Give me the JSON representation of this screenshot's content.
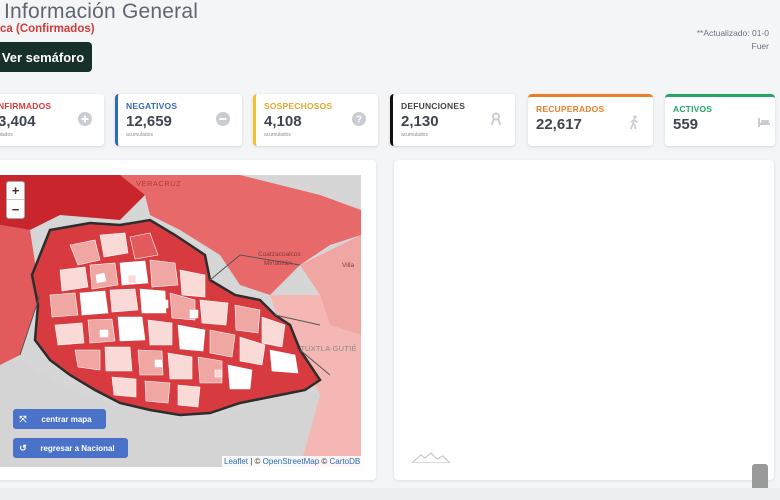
{
  "header": {
    "title": "Información General",
    "subtitle": "ca (Confirmados)",
    "semaforo_button": "Ver semáforo",
    "updated_line1": "**Actualizado: 01-0",
    "updated_line2": "Fuer"
  },
  "cards": [
    {
      "label": "NFIRMADOS",
      "value": "3,404",
      "note": "ulados",
      "icon": "plus-circle-icon"
    },
    {
      "label": "NEGATIVOS",
      "value": "12,659",
      "note": "acumulados",
      "icon": "minus-circle-icon"
    },
    {
      "label": "SOSPECHOSOS",
      "value": "4,108",
      "note": "acumulados",
      "icon": "question-circle-icon"
    },
    {
      "label": "DEFUNCIONES",
      "value": "2,130",
      "note": "acumulados",
      "icon": "ribbon-icon"
    },
    {
      "label": "RECUPERADOS",
      "value": "22,617",
      "icon": "walking-icon"
    },
    {
      "label": "ACTIVOS",
      "value": "559",
      "icon": "bed-icon"
    }
  ],
  "map": {
    "labels": {
      "veracruz": "VERACRUZ",
      "coatzacoalcos": "Coatzacoalcos",
      "minatitlan": "Minatitlán",
      "villa": "Villa",
      "tuxtla": "TUXTLA GUTIÉ"
    },
    "zoom_in": "+",
    "zoom_out": "−",
    "centrar_button": "centrar mapa",
    "regresar_button": "regresar a Nacional",
    "attribution": {
      "leaflet": "Leaflet",
      "sep1": " | © ",
      "osm": "OpenStreetMap",
      "sep2": " © ",
      "carto": "CartoDB"
    },
    "colors": {
      "dark": "#c8262c",
      "mid": "#e35a5d",
      "light": "#f0a6a3",
      "pale": "#fadad7",
      "border": "#2d2d2d"
    }
  }
}
